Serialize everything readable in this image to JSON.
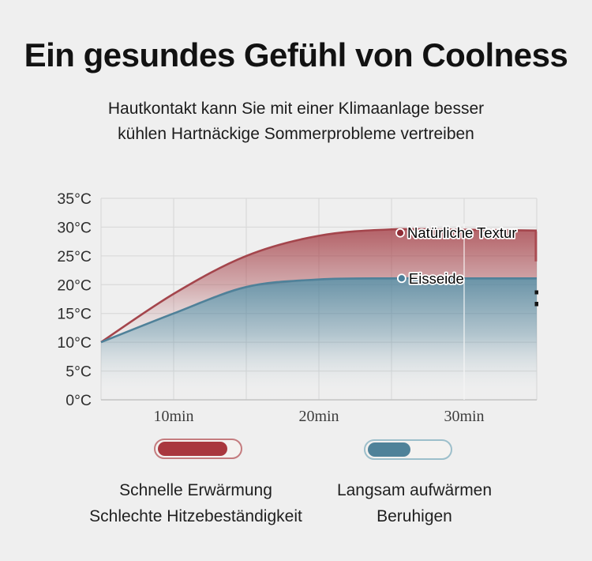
{
  "page": {
    "background_color": "#efefef"
  },
  "header": {
    "title": "Ein gesundes Gefühl von Coolness",
    "subtitle_line1": "Hautkontakt kann Sie mit einer Klimaanlage besser",
    "subtitle_line2": "kühlen Hartnäckige Sommerprobleme vertreiben"
  },
  "chart_data": {
    "type": "area",
    "title": "",
    "xlabel": "",
    "ylabel": "",
    "x_unit": "min",
    "y_unit": "°C",
    "xlim": [
      5,
      35
    ],
    "ylim": [
      0,
      35
    ],
    "grid": true,
    "x": [
      5,
      10,
      15,
      20,
      25,
      30,
      35
    ],
    "x_ticks": [
      {
        "t": 10,
        "label": "10min"
      },
      {
        "t": 20,
        "label": "20min"
      },
      {
        "t": 30,
        "label": "30min"
      }
    ],
    "y_ticks": [
      {
        "v": 35,
        "label": "35°C"
      },
      {
        "v": 30,
        "label": "30°C"
      },
      {
        "v": 25,
        "label": "25°C"
      },
      {
        "v": 20,
        "label": "20°C"
      },
      {
        "v": 15,
        "label": "15°C"
      },
      {
        "v": 10,
        "label": "10°C"
      },
      {
        "v": 5,
        "label": "5°C"
      },
      {
        "v": 0,
        "label": "0°C"
      }
    ],
    "series": [
      {
        "name": "Natürliche Textur",
        "stroke_color": "#a4454c",
        "fill_top_color": "#a7444b",
        "fill_bottom_color": "#d9c6c6",
        "values": [
          10,
          18.4,
          25.0,
          28.5,
          29.6,
          29.55,
          29.4
        ]
      },
      {
        "name": "Eisseide",
        "stroke_color": "#4f8199",
        "fill_top_color": "#4e8098",
        "fill_bottom_color": "#dfe4e6",
        "values": [
          10,
          15.0,
          19.6,
          20.9,
          21.1,
          21.1,
          21.1
        ]
      }
    ],
    "annotations": [
      {
        "label": "Natürliche Textur",
        "dot_color": "#8e2d36",
        "t": 25.6,
        "temp": 29.0
      },
      {
        "label": "Eisseide",
        "dot_color": "#4b7f99",
        "t": 25.7,
        "temp": 21.1
      }
    ]
  },
  "legend": {
    "items": [
      {
        "pill_fill": "#a9373e",
        "pill_border": "#c47c7f",
        "fill_ratio": 0.85,
        "line1": "Schnelle Erwärmung",
        "line2": "Schlechte Hitzebeständigkeit"
      },
      {
        "pill_fill": "#4f8299",
        "pill_border": "#9dbfcb",
        "fill_ratio": 0.52,
        "line1": "Langsam aufwärmen",
        "line2": "Beruhigen"
      }
    ]
  }
}
